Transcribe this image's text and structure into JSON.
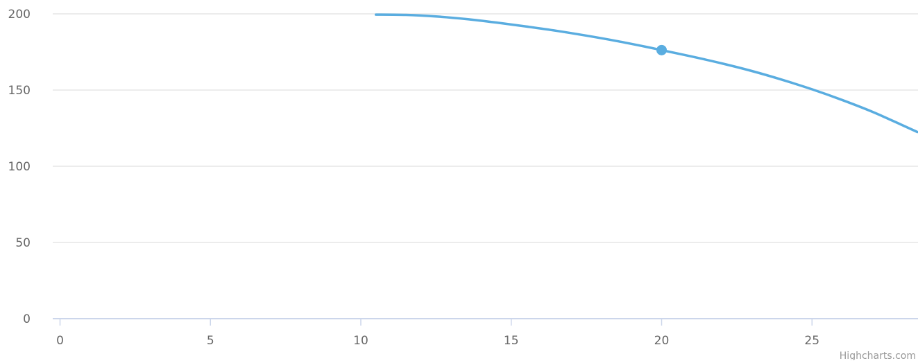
{
  "chart_data": {
    "type": "line",
    "title": "",
    "xlabel": "",
    "ylabel": "",
    "xlim": [
      0,
      28.5
    ],
    "ylim": [
      0,
      200
    ],
    "x_ticks": [
      "0",
      "5",
      "10",
      "15",
      "20",
      "25"
    ],
    "y_ticks": [
      "0",
      "50",
      "100",
      "150",
      "200"
    ],
    "grid": "horizontal",
    "legend": "none",
    "series": [
      {
        "color": "#5aade0",
        "x": [
          10.5,
          11.5,
          12.5,
          13.5,
          14.5,
          15.5,
          16.5,
          17.5,
          18.5,
          19.5,
          20,
          21,
          22,
          23,
          24,
          25,
          26,
          27,
          28,
          28.5
        ],
        "y": [
          199.5,
          199.3,
          198.3,
          196.6,
          194.3,
          191.7,
          188.9,
          185.7,
          182.2,
          178.3,
          176.2,
          172.0,
          167.5,
          162.5,
          156.8,
          150.5,
          143.5,
          135.8,
          127.0,
          122.5
        ]
      }
    ],
    "highlighted_point": {
      "x": 20,
      "y": 176.2
    },
    "credits": "Highcharts.com",
    "colors": {
      "line": "#5aade0",
      "grid": "#e6e6e6",
      "axis": "#ccd6eb",
      "tick_label": "#666666",
      "credits": "#999999"
    }
  }
}
